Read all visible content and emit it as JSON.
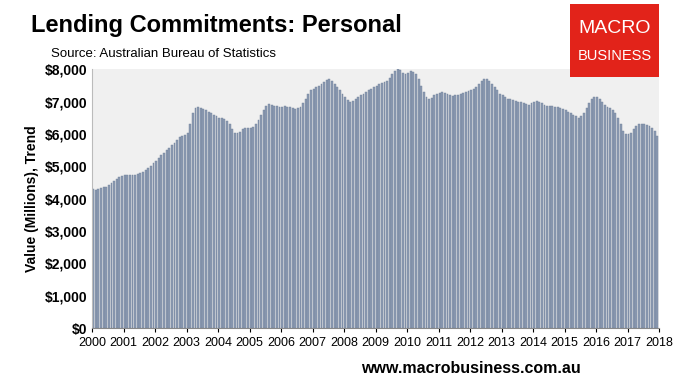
{
  "chart_data": {
    "type": "bar",
    "title": "Lending Commitments: Personal",
    "subtitle": "Source: Australian Bureau of Statistics",
    "y_label": "Value (Millions), Trend",
    "annotations": [
      "MACRO",
      "BUSINESS",
      "www.macrobusiness.com.au"
    ],
    "color": "#8d9cb3",
    "grid": false,
    "xlim": [
      2000,
      2018
    ],
    "xticks": [
      2000,
      2001,
      2002,
      2003,
      2004,
      2005,
      2006,
      2007,
      2008,
      2009,
      2010,
      2011,
      2012,
      2013,
      2014,
      2015,
      2016,
      2017,
      2018
    ],
    "ylim": [
      0,
      8000
    ],
    "yticks": [
      {
        "value": 0,
        "label": "$0"
      },
      {
        "value": 1000,
        "label": "$1,000"
      },
      {
        "value": 2000,
        "label": "$2,000"
      },
      {
        "value": 3000,
        "label": "$3,000"
      },
      {
        "value": 4000,
        "label": "$4,000"
      },
      {
        "value": 5000,
        "label": "$5,000"
      },
      {
        "value": 6000,
        "label": "$6,000"
      },
      {
        "value": 7000,
        "label": "$7,000"
      },
      {
        "value": 8000,
        "label": "$8,000"
      }
    ],
    "x": [
      2000,
      2000.083,
      2000.167,
      2000.25,
      2000.333,
      2000.417,
      2000.5,
      2000.583,
      2000.667,
      2000.75,
      2000.833,
      2000.917,
      2001,
      2001.083,
      2001.167,
      2001.25,
      2001.333,
      2001.417,
      2001.5,
      2001.583,
      2001.667,
      2001.75,
      2001.833,
      2001.917,
      2002,
      2002.083,
      2002.167,
      2002.25,
      2002.333,
      2002.417,
      2002.5,
      2002.583,
      2002.667,
      2002.75,
      2002.833,
      2002.917,
      2003,
      2003.083,
      2003.167,
      2003.25,
      2003.333,
      2003.417,
      2003.5,
      2003.583,
      2003.667,
      2003.75,
      2003.833,
      2003.917,
      2004,
      2004.083,
      2004.167,
      2004.25,
      2004.333,
      2004.417,
      2004.5,
      2004.583,
      2004.667,
      2004.75,
      2004.833,
      2004.917,
      2005,
      2005.083,
      2005.167,
      2005.25,
      2005.333,
      2005.417,
      2005.5,
      2005.583,
      2005.667,
      2005.75,
      2005.833,
      2005.917,
      2006,
      2006.083,
      2006.167,
      2006.25,
      2006.333,
      2006.417,
      2006.5,
      2006.583,
      2006.667,
      2006.75,
      2006.833,
      2006.917,
      2007,
      2007.083,
      2007.167,
      2007.25,
      2007.333,
      2007.417,
      2007.5,
      2007.583,
      2007.667,
      2007.75,
      2007.833,
      2007.917,
      2008,
      2008.083,
      2008.167,
      2008.25,
      2008.333,
      2008.417,
      2008.5,
      2008.583,
      2008.667,
      2008.75,
      2008.833,
      2008.917,
      2009,
      2009.083,
      2009.167,
      2009.25,
      2009.333,
      2009.417,
      2009.5,
      2009.583,
      2009.667,
      2009.75,
      2009.833,
      2009.917,
      2010,
      2010.083,
      2010.167,
      2010.25,
      2010.333,
      2010.417,
      2010.5,
      2010.583,
      2010.667,
      2010.75,
      2010.833,
      2010.917,
      2011,
      2011.083,
      2011.167,
      2011.25,
      2011.333,
      2011.417,
      2011.5,
      2011.583,
      2011.667,
      2011.75,
      2011.833,
      2011.917,
      2012,
      2012.083,
      2012.167,
      2012.25,
      2012.333,
      2012.417,
      2012.5,
      2012.583,
      2012.667,
      2012.75,
      2012.833,
      2012.917,
      2013,
      2013.083,
      2013.167,
      2013.25,
      2013.333,
      2013.417,
      2013.5,
      2013.583,
      2013.667,
      2013.75,
      2013.833,
      2013.917,
      2014,
      2014.083,
      2014.167,
      2014.25,
      2014.333,
      2014.417,
      2014.5,
      2014.583,
      2014.667,
      2014.75,
      2014.833,
      2014.917,
      2015,
      2015.083,
      2015.167,
      2015.25,
      2015.333,
      2015.417,
      2015.5,
      2015.583,
      2015.667,
      2015.75,
      2015.833,
      2015.917,
      2016,
      2016.083,
      2016.167,
      2016.25,
      2016.333,
      2016.417,
      2016.5,
      2016.583,
      2016.667,
      2016.75,
      2016.833,
      2016.917,
      2017,
      2017.083,
      2017.167,
      2017.25,
      2017.333,
      2017.417,
      2017.5,
      2017.583,
      2017.667,
      2017.75,
      2017.833,
      2017.917
    ],
    "values": [
      4300,
      4280,
      4300,
      4320,
      4350,
      4380,
      4420,
      4480,
      4550,
      4620,
      4680,
      4720,
      4740,
      4750,
      4740,
      4730,
      4740,
      4760,
      4790,
      4830,
      4880,
      4950,
      5020,
      5100,
      5180,
      5260,
      5340,
      5420,
      5500,
      5580,
      5650,
      5730,
      5820,
      5900,
      5950,
      5980,
      6050,
      6300,
      6650,
      6800,
      6830,
      6820,
      6780,
      6740,
      6700,
      6650,
      6600,
      6550,
      6500,
      6500,
      6480,
      6420,
      6300,
      6150,
      6050,
      6020,
      6080,
      6150,
      6180,
      6180,
      6200,
      6220,
      6300,
      6450,
      6600,
      6750,
      6880,
      6920,
      6900,
      6880,
      6860,
      6850,
      6850,
      6860,
      6850,
      6830,
      6800,
      6780,
      6800,
      6850,
      6950,
      7100,
      7250,
      7350,
      7400,
      7450,
      7500,
      7550,
      7600,
      7680,
      7700,
      7650,
      7550,
      7450,
      7350,
      7250,
      7150,
      7050,
      7000,
      7020,
      7080,
      7150,
      7200,
      7250,
      7300,
      7350,
      7400,
      7450,
      7500,
      7550,
      7580,
      7600,
      7650,
      7750,
      7850,
      7950,
      8000,
      7980,
      7900,
      7850,
      7900,
      7950,
      7930,
      7850,
      7700,
      7500,
      7300,
      7150,
      7100,
      7120,
      7200,
      7250,
      7280,
      7300,
      7280,
      7250,
      7200,
      7180,
      7200,
      7220,
      7250,
      7280,
      7300,
      7320,
      7350,
      7400,
      7450,
      7550,
      7650,
      7700,
      7700,
      7650,
      7550,
      7450,
      7350,
      7250,
      7200,
      7150,
      7100,
      7080,
      7050,
      7020,
      7000,
      6980,
      6950,
      6920,
      6900,
      6950,
      7000,
      7020,
      7000,
      6950,
      6900,
      6880,
      6870,
      6860,
      6850,
      6830,
      6800,
      6780,
      6750,
      6700,
      6650,
      6600,
      6550,
      6500,
      6550,
      6650,
      6800,
      6950,
      7100,
      7150,
      7150,
      7100,
      7000,
      6900,
      6850,
      6800,
      6750,
      6650,
      6500,
      6300,
      6100,
      6000,
      6000,
      6050,
      6150,
      6250,
      6300,
      6300,
      6300,
      6280,
      6250,
      6200,
      6100,
      5950
    ]
  }
}
